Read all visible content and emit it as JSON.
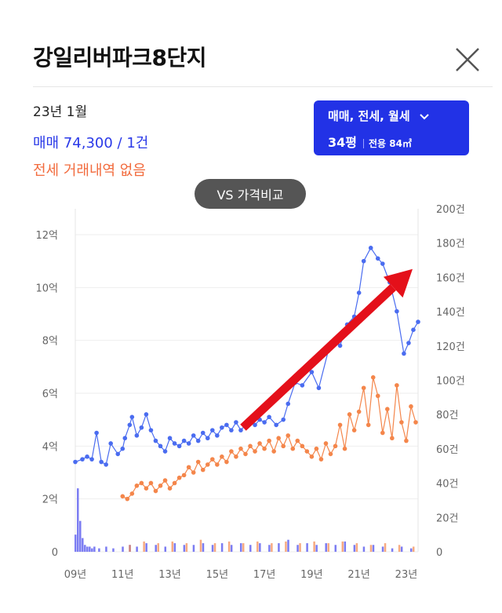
{
  "header": {
    "title": "강일리버파크8단지",
    "close_icon": "close-icon"
  },
  "summary": {
    "date": "23년 1월",
    "sale": "매매 74,300 / 1건",
    "jeonse": "전세 거래내역 없음"
  },
  "filter": {
    "types": "매매, 전세, 월세",
    "size": "34평",
    "area": "전용 84㎡",
    "chevron_icon": "chevron-down-icon"
  },
  "compare_label": "VS 가격비교",
  "colors": {
    "sale": "#4a6cf0",
    "jeonse": "#f4864b",
    "volume_sale": "#7b7cf2",
    "accent_button": "#2232e6",
    "arrow": "#e4101a"
  },
  "chart_data": {
    "type": "line",
    "x_ticks": [
      "09년",
      "11년",
      "13년",
      "15년",
      "17년",
      "19년",
      "21년",
      "23년"
    ],
    "x_range": [
      2009,
      2023.5
    ],
    "y_left_ticks": [
      "0",
      "2억",
      "4억",
      "6억",
      "8억",
      "10억",
      "12억"
    ],
    "y_left_range": [
      0,
      12.5
    ],
    "y_right_ticks": [
      "0",
      "20건",
      "40건",
      "60건",
      "80건",
      "100건",
      "120건",
      "140건",
      "160건",
      "180건",
      "200건"
    ],
    "y_right_range": [
      0,
      200
    ],
    "grid": true,
    "series": [
      {
        "name": "매매",
        "x": [
          2009.0,
          2009.3,
          2009.5,
          2009.7,
          2009.9,
          2010.1,
          2010.3,
          2010.5,
          2010.8,
          2011.0,
          2011.1,
          2011.3,
          2011.4,
          2011.6,
          2011.8,
          2012.0,
          2012.2,
          2012.4,
          2012.6,
          2012.8,
          2013.0,
          2013.2,
          2013.4,
          2013.6,
          2013.8,
          2014.0,
          2014.2,
          2014.4,
          2014.6,
          2014.8,
          2015.0,
          2015.2,
          2015.4,
          2015.6,
          2015.8,
          2016.0,
          2016.2,
          2016.4,
          2016.6,
          2016.8,
          2017.0,
          2017.2,
          2017.5,
          2017.8,
          2018.0,
          2018.3,
          2018.6,
          2019.0,
          2019.3,
          2019.7,
          2020.0,
          2020.2,
          2020.5,
          2020.8,
          2021.0,
          2021.2,
          2021.5,
          2021.8,
          2022.0,
          2022.3,
          2022.6,
          2022.9,
          2023.1,
          2023.3,
          2023.5
        ],
        "values": [
          3.4,
          3.5,
          3.6,
          3.5,
          4.5,
          3.4,
          3.3,
          4.1,
          3.7,
          3.9,
          4.3,
          4.8,
          5.1,
          4.4,
          4.7,
          5.2,
          4.6,
          4.2,
          4.0,
          3.8,
          4.3,
          4.1,
          4.0,
          4.2,
          4.1,
          4.4,
          4.2,
          4.5,
          4.3,
          4.6,
          4.4,
          4.7,
          4.8,
          4.6,
          4.9,
          4.6,
          4.8,
          4.9,
          4.8,
          5.0,
          4.9,
          5.1,
          4.8,
          5.0,
          5.6,
          6.4,
          6.3,
          6.8,
          6.2,
          7.6,
          7.9,
          7.8,
          8.6,
          8.9,
          9.8,
          11.0,
          11.5,
          11.1,
          10.9,
          10.2,
          9.1,
          7.5,
          7.9,
          8.4,
          8.7
        ]
      },
      {
        "name": "전세",
        "x": [
          2011.0,
          2011.2,
          2011.4,
          2011.6,
          2011.8,
          2012.0,
          2012.2,
          2012.4,
          2012.6,
          2012.8,
          2013.0,
          2013.2,
          2013.4,
          2013.6,
          2013.8,
          2014.0,
          2014.2,
          2014.4,
          2014.6,
          2014.8,
          2015.0,
          2015.2,
          2015.4,
          2015.6,
          2015.8,
          2016.0,
          2016.2,
          2016.4,
          2016.6,
          2016.8,
          2017.0,
          2017.2,
          2017.4,
          2017.6,
          2017.8,
          2018.0,
          2018.2,
          2018.4,
          2018.6,
          2018.8,
          2019.0,
          2019.2,
          2019.4,
          2019.6,
          2019.8,
          2020.0,
          2020.2,
          2020.4,
          2020.6,
          2020.8,
          2021.0,
          2021.2,
          2021.4,
          2021.6,
          2021.8,
          2022.0,
          2022.2,
          2022.4,
          2022.6,
          2022.8,
          2023.0,
          2023.2,
          2023.4
        ],
        "values": [
          2.1,
          2.0,
          2.2,
          2.5,
          2.6,
          2.4,
          2.6,
          2.3,
          2.5,
          2.7,
          2.4,
          2.6,
          2.8,
          2.9,
          3.2,
          3.0,
          3.4,
          3.1,
          3.3,
          3.5,
          3.3,
          3.6,
          3.4,
          3.8,
          3.6,
          3.9,
          3.7,
          4.0,
          3.8,
          4.1,
          3.9,
          4.2,
          3.8,
          4.3,
          4.0,
          4.4,
          3.9,
          4.2,
          4.0,
          3.8,
          3.6,
          3.9,
          3.5,
          4.1,
          3.7,
          4.0,
          4.8,
          3.9,
          5.2,
          4.6,
          5.3,
          6.2,
          4.8,
          6.6,
          5.9,
          4.5,
          5.4,
          4.3,
          6.3,
          4.9,
          4.2,
          5.5,
          4.9
        ]
      }
    ],
    "volume_sale": {
      "x": [
        2009.0,
        2009.1,
        2009.2,
        2009.3,
        2009.4,
        2009.5,
        2009.6,
        2009.7,
        2009.8,
        2010.0,
        2010.3,
        2010.6,
        2011.0,
        2011.3,
        2011.6,
        2012.0,
        2012.4,
        2012.8,
        2013.2,
        2013.6,
        2014.0,
        2014.4,
        2014.8,
        2015.2,
        2015.6,
        2016.0,
        2016.4,
        2016.8,
        2017.2,
        2017.6,
        2018.0,
        2018.4,
        2018.8,
        2019.2,
        2019.6,
        2020.0,
        2020.4,
        2020.8,
        2021.2,
        2021.6,
        2022.0,
        2022.4,
        2022.8,
        2023.2
      ],
      "values": [
        10,
        37,
        18,
        8,
        4,
        3,
        3,
        2,
        3,
        2,
        3,
        2,
        3,
        4,
        3,
        5,
        4,
        3,
        5,
        4,
        4,
        5,
        4,
        5,
        4,
        5,
        4,
        5,
        4,
        5,
        7,
        4,
        5,
        4,
        5,
        4,
        6,
        4,
        3,
        4,
        3,
        2,
        3,
        2
      ]
    },
    "volume_jeonse": {
      "x": [
        2011.2,
        2011.8,
        2012.4,
        2013.0,
        2013.6,
        2014.2,
        2014.8,
        2015.4,
        2016.0,
        2016.6,
        2017.2,
        2017.8,
        2018.4,
        2019.0,
        2019.6,
        2020.2,
        2020.8,
        2021.4,
        2022.0,
        2022.6,
        2023.2
      ],
      "values": [
        4,
        6,
        5,
        6,
        5,
        7,
        5,
        6,
        5,
        6,
        5,
        6,
        5,
        6,
        5,
        6,
        5,
        4,
        5,
        4,
        3
      ]
    }
  }
}
